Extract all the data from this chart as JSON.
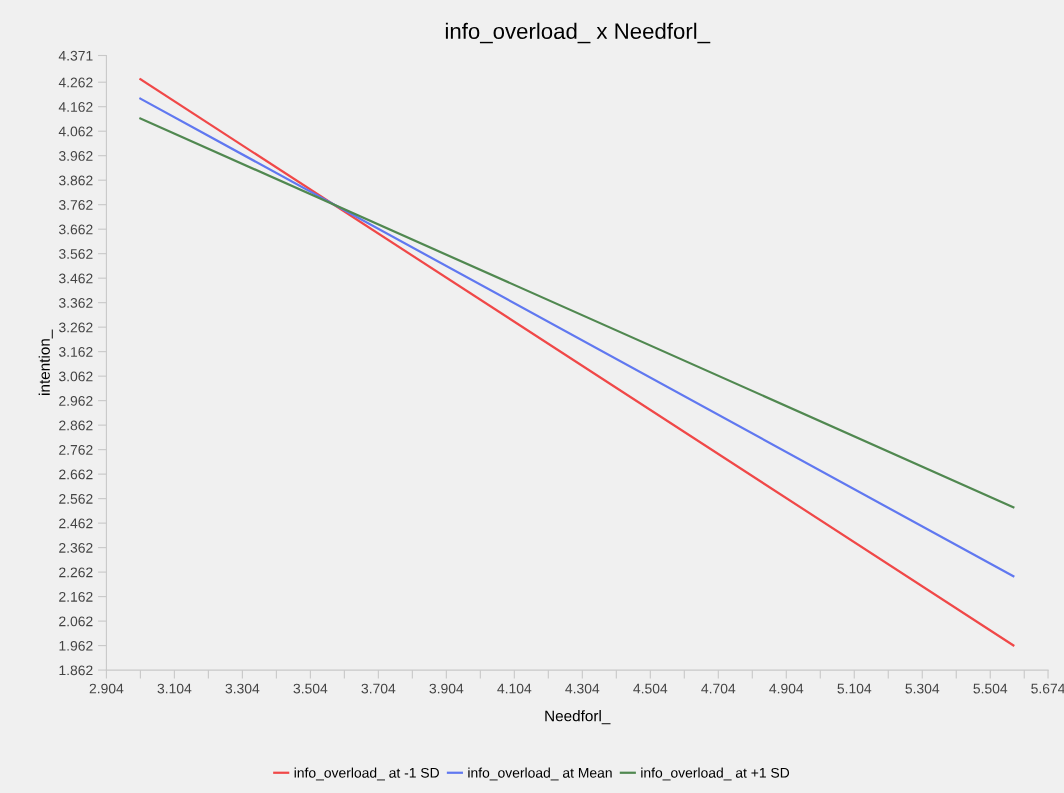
{
  "chart_data": {
    "type": "line",
    "title": "info_overload_ x Needforl_",
    "xlabel": "Needforl_",
    "ylabel": "intention_",
    "xlim": [
      2.904,
      5.674
    ],
    "ylim": [
      1.862,
      4.371
    ],
    "xticks": [
      2.904,
      {
        "value": 3.004,
        "label": null
      },
      3.104,
      {
        "value": 3.204,
        "label": null
      },
      3.304,
      {
        "value": 3.404,
        "label": null
      },
      3.504,
      {
        "value": 3.604,
        "label": null
      },
      3.704,
      {
        "value": 3.804,
        "label": null
      },
      3.904,
      {
        "value": 4.004,
        "label": null
      },
      4.104,
      {
        "value": 4.204,
        "label": null
      },
      4.304,
      {
        "value": 4.404,
        "label": null
      },
      4.504,
      {
        "value": 4.604,
        "label": null
      },
      4.704,
      {
        "value": 4.804,
        "label": null
      },
      4.904,
      {
        "value": 5.004,
        "label": null
      },
      5.104,
      {
        "value": 5.204,
        "label": null
      },
      5.304,
      {
        "value": 5.404,
        "label": null
      },
      5.504,
      {
        "value": 5.604,
        "label": null
      },
      5.674
    ],
    "yticks": [
      1.862,
      1.962,
      2.062,
      2.162,
      2.262,
      2.362,
      2.462,
      2.562,
      2.662,
      2.762,
      2.862,
      2.962,
      3.062,
      3.162,
      3.262,
      3.362,
      3.462,
      3.562,
      3.662,
      3.762,
      3.862,
      3.962,
      4.062,
      4.162,
      4.262,
      4.371
    ],
    "x": [
      3.004,
      5.572
    ],
    "series": [
      {
        "name": "info_overload_ at -1 SD",
        "color": "#f04848",
        "values": [
          4.274,
          1.963
        ]
      },
      {
        "name": "info_overload_ at Mean",
        "color": "#6078f0",
        "values": [
          4.195,
          2.245
        ]
      },
      {
        "name": "info_overload_ at +1 SD",
        "color": "#508850",
        "values": [
          4.114,
          2.527
        ]
      }
    ],
    "grid": false,
    "legend": "bottom",
    "marker": "none",
    "line_style": "solid"
  }
}
